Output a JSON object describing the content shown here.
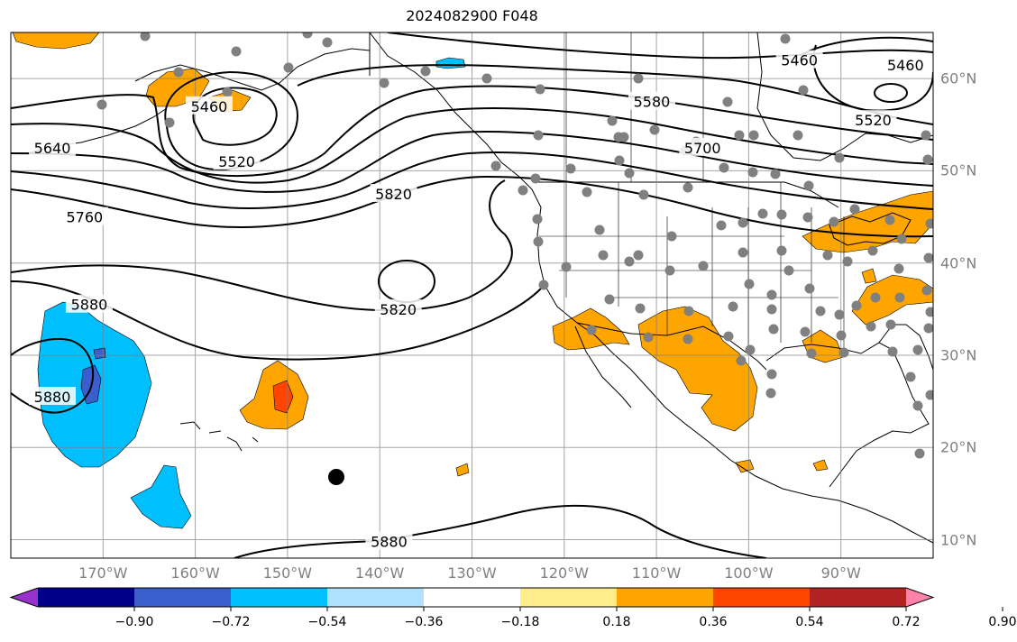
{
  "title": "2024082900 F048",
  "map": {
    "lon_range": [
      -180,
      -80
    ],
    "lat_range": [
      8,
      65
    ],
    "lon_ticks": [
      {
        "value": -170,
        "label": "170°W"
      },
      {
        "value": -160,
        "label": "160°W"
      },
      {
        "value": -150,
        "label": "150°W"
      },
      {
        "value": -140,
        "label": "140°W"
      },
      {
        "value": -130,
        "label": "130°W"
      },
      {
        "value": -120,
        "label": "120°W"
      },
      {
        "value": -110,
        "label": "110°W"
      },
      {
        "value": -100,
        "label": "100°W"
      },
      {
        "value": -90,
        "label": "90°W"
      }
    ],
    "lat_ticks": [
      {
        "value": 60,
        "label": "60°N"
      },
      {
        "value": 50,
        "label": "50°N"
      },
      {
        "value": 40,
        "label": "40°N"
      },
      {
        "value": 30,
        "label": "30°N"
      },
      {
        "value": 20,
        "label": "20°N"
      },
      {
        "value": 10,
        "label": "10°N"
      }
    ],
    "contour_labels": [
      {
        "text": "5460",
        "lon": -94.5,
        "lat": 62.0
      },
      {
        "text": "5460",
        "lon": -158.5,
        "lat": 57.0
      },
      {
        "text": "5460",
        "lon": -83.0,
        "lat": 61.5
      },
      {
        "text": "5580",
        "lon": -110.5,
        "lat": 57.5
      },
      {
        "text": "5520",
        "lon": -86.5,
        "lat": 55.5
      },
      {
        "text": "5700",
        "lon": -105.0,
        "lat": 52.5
      },
      {
        "text": "5520",
        "lon": -155.5,
        "lat": 51.0
      },
      {
        "text": "5640",
        "lon": -175.5,
        "lat": 52.5
      },
      {
        "text": "5820",
        "lon": -138.5,
        "lat": 47.5
      },
      {
        "text": "5760",
        "lon": -172.0,
        "lat": 45.0
      },
      {
        "text": "5880",
        "lon": -171.5,
        "lat": 35.5
      },
      {
        "text": "5820",
        "lon": -138.0,
        "lat": 35.0
      },
      {
        "text": "5880",
        "lon": -175.5,
        "lat": 25.5
      },
      {
        "text": "5880",
        "lon": -139.0,
        "lat": 9.8
      }
    ],
    "station_dot_color": "#808080",
    "marker_color": "#000000"
  },
  "colorbar": {
    "colors": [
      "#9932cc",
      "#00008b",
      "#3a5fcd",
      "#00bfff",
      "#b0e2ff",
      "#ffffff",
      "#ffec8b",
      "#ffa500",
      "#ff4500",
      "#b22222",
      "#ff82ab"
    ],
    "tick_labels": [
      "−0.90",
      "−0.72",
      "−0.54",
      "−0.36",
      "−0.18",
      "0.18",
      "0.36",
      "0.54",
      "0.72",
      "0.90"
    ]
  }
}
